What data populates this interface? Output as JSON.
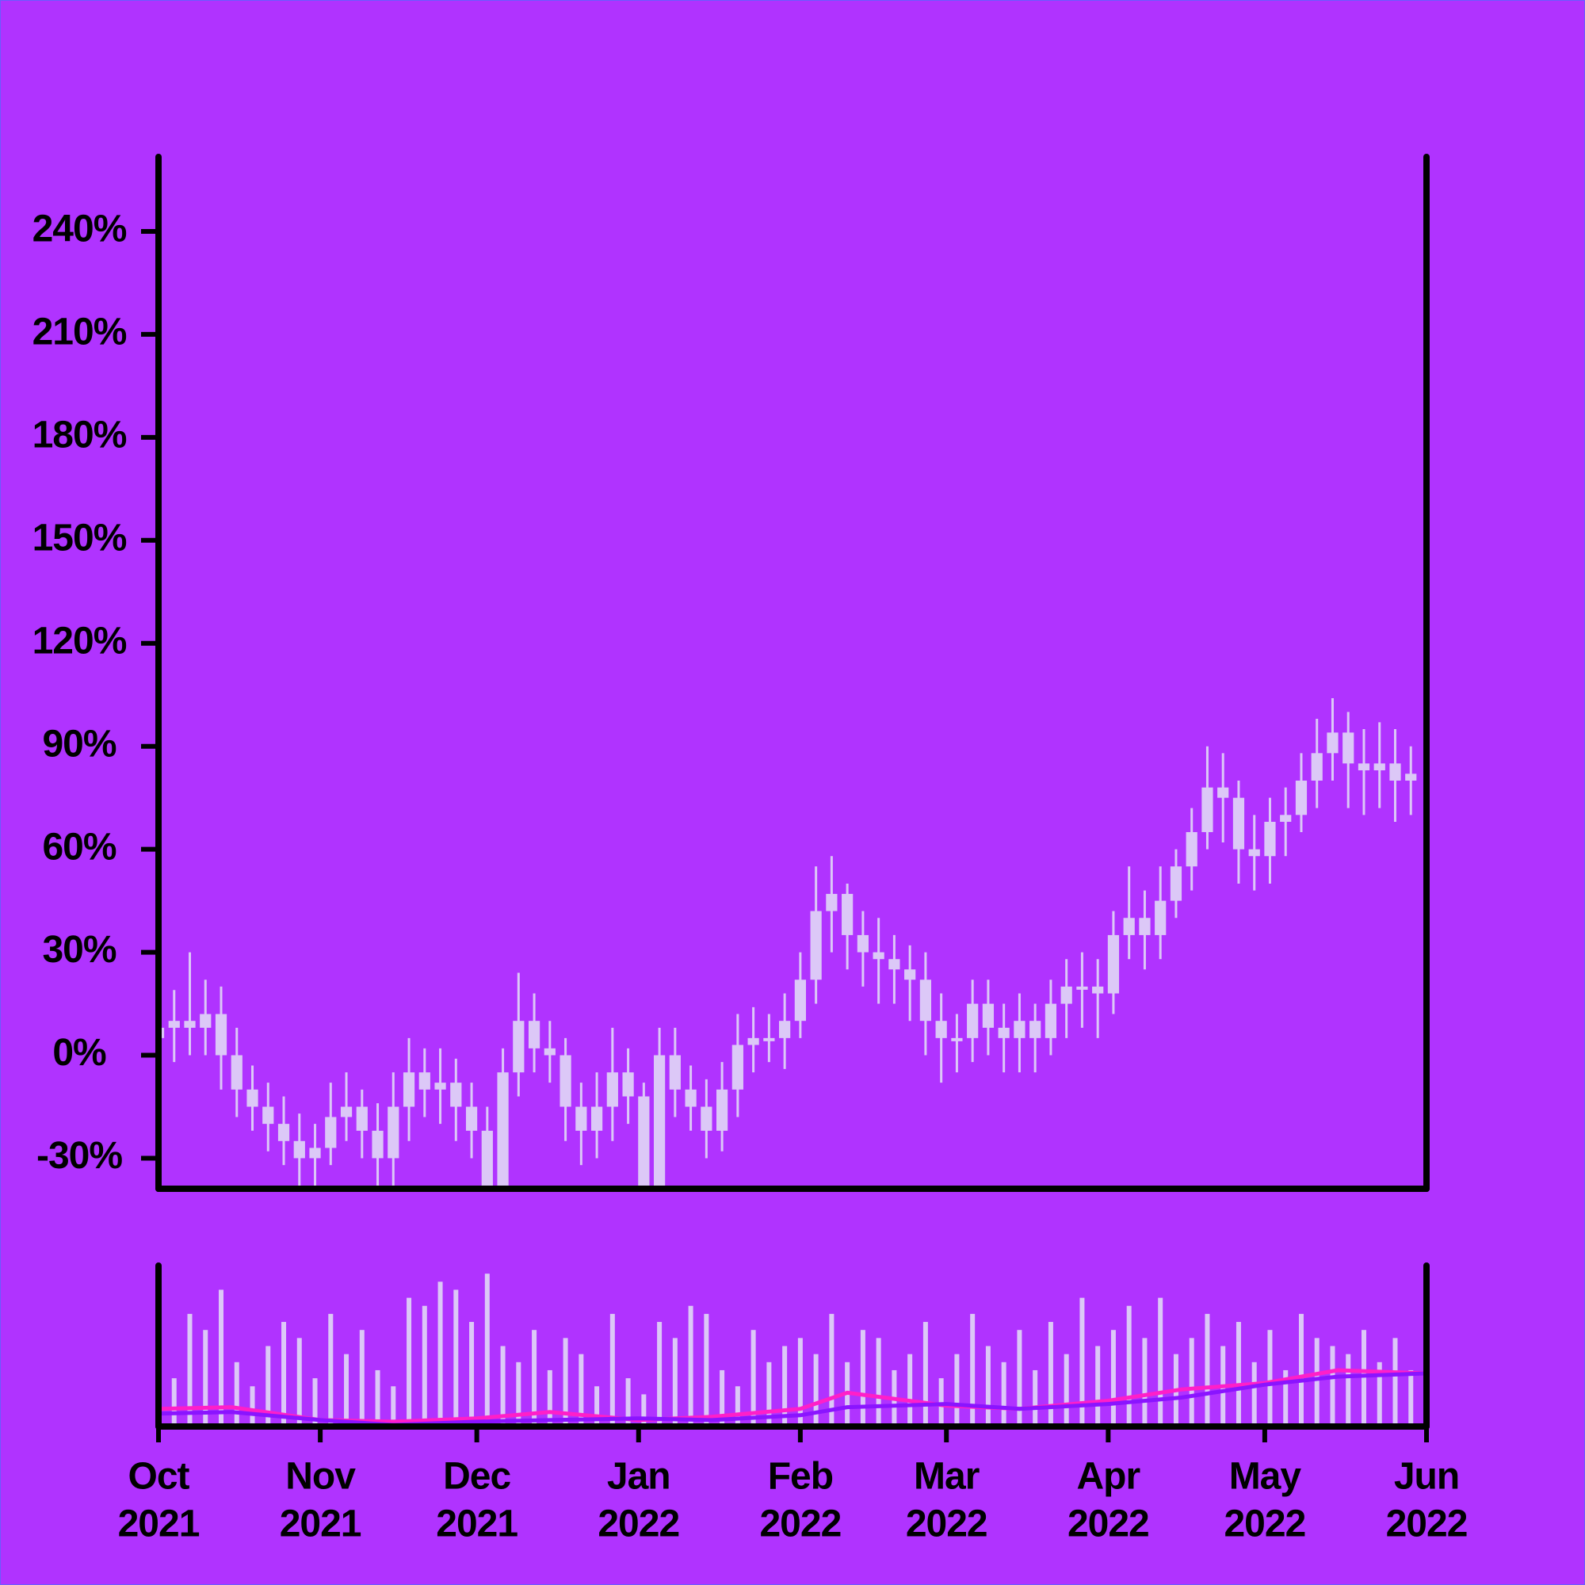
{
  "chart_data": {
    "type": "candlestick",
    "x": [
      "2021-10-01",
      "2021-10-04",
      "2021-10-07",
      "2021-10-10",
      "2021-10-13",
      "2021-10-16",
      "2021-10-19",
      "2021-10-22",
      "2021-10-25",
      "2021-10-28",
      "2021-10-31",
      "2021-11-03",
      "2021-11-06",
      "2021-11-09",
      "2021-11-12",
      "2021-11-15",
      "2021-11-18",
      "2021-11-21",
      "2021-11-24",
      "2021-11-27",
      "2021-11-30",
      "2021-12-03",
      "2021-12-06",
      "2021-12-09",
      "2021-12-12",
      "2021-12-15",
      "2021-12-18",
      "2021-12-21",
      "2021-12-24",
      "2021-12-27",
      "2021-12-30",
      "2022-01-02",
      "2022-01-05",
      "2022-01-08",
      "2022-01-11",
      "2022-01-14",
      "2022-01-17",
      "2022-01-20",
      "2022-01-23",
      "2022-01-26",
      "2022-01-29",
      "2022-02-01",
      "2022-02-04",
      "2022-02-07",
      "2022-02-10",
      "2022-02-13",
      "2022-02-16",
      "2022-02-19",
      "2022-02-22",
      "2022-02-25",
      "2022-02-28",
      "2022-03-03",
      "2022-03-06",
      "2022-03-09",
      "2022-03-12",
      "2022-03-15",
      "2022-03-18",
      "2022-03-21",
      "2022-03-24",
      "2022-03-27",
      "2022-03-30",
      "2022-04-02",
      "2022-04-05",
      "2022-04-08",
      "2022-04-11",
      "2022-04-14",
      "2022-04-17",
      "2022-04-20",
      "2022-04-23",
      "2022-04-26",
      "2022-04-29",
      "2022-05-02",
      "2022-05-05",
      "2022-05-08",
      "2022-05-11",
      "2022-05-14",
      "2022-05-17",
      "2022-05-20",
      "2022-05-23",
      "2022-05-26",
      "2022-05-29"
    ],
    "open": [
      5,
      8,
      10,
      8,
      12,
      0,
      -10,
      -15,
      -20,
      -25,
      -30,
      -27,
      -18,
      -15,
      -22,
      -30,
      -15,
      -5,
      -10,
      -8,
      -15,
      -22,
      -38,
      -5,
      10,
      2,
      0,
      -15,
      -22,
      -15,
      -5,
      -12,
      -42,
      0,
      -10,
      -15,
      -22,
      -10,
      3,
      5,
      5,
      10,
      22,
      42,
      47,
      35,
      30,
      28,
      25,
      22,
      10,
      5,
      5,
      15,
      8,
      5,
      10,
      5,
      15,
      20,
      20,
      18,
      35,
      40,
      35,
      45,
      55,
      65,
      78,
      75,
      60,
      58,
      68,
      70,
      80,
      88,
      94,
      85,
      83,
      85,
      80
    ],
    "high": [
      18,
      19,
      30,
      22,
      20,
      8,
      -3,
      -8,
      -12,
      -17,
      -20,
      -8,
      -5,
      -10,
      -14,
      -5,
      5,
      2,
      2,
      -1,
      -8,
      -15,
      2,
      24,
      18,
      10,
      5,
      -8,
      -5,
      8,
      2,
      -8,
      8,
      8,
      -3,
      -7,
      -2,
      12,
      14,
      12,
      18,
      30,
      55,
      58,
      50,
      42,
      40,
      35,
      32,
      30,
      18,
      12,
      22,
      22,
      15,
      18,
      15,
      22,
      28,
      30,
      28,
      42,
      55,
      48,
      55,
      60,
      72,
      90,
      88,
      80,
      70,
      75,
      78,
      88,
      98,
      104,
      100,
      95,
      97,
      95,
      90
    ],
    "low": [
      -8,
      -2,
      0,
      0,
      -10,
      -18,
      -22,
      -28,
      -32,
      -38,
      -40,
      -32,
      -25,
      -30,
      -40,
      -38,
      -25,
      -18,
      -20,
      -25,
      -30,
      -45,
      -45,
      -12,
      -5,
      -8,
      -25,
      -32,
      -30,
      -25,
      -20,
      -48,
      -45,
      -18,
      -22,
      -30,
      -28,
      -18,
      -5,
      -2,
      -4,
      5,
      15,
      30,
      25,
      20,
      15,
      15,
      10,
      0,
      -8,
      -5,
      -2,
      0,
      -5,
      -5,
      -5,
      0,
      5,
      8,
      5,
      12,
      28,
      25,
      28,
      40,
      48,
      60,
      62,
      50,
      48,
      50,
      58,
      65,
      72,
      80,
      72,
      70,
      72,
      68,
      70
    ],
    "close": [
      8,
      10,
      8,
      12,
      0,
      -10,
      -15,
      -20,
      -25,
      -30,
      -27,
      -18,
      -15,
      -22,
      -30,
      -15,
      -5,
      -10,
      -8,
      -15,
      -22,
      -38,
      -5,
      10,
      2,
      0,
      -15,
      -22,
      -15,
      -5,
      -12,
      -42,
      0,
      -10,
      -15,
      -22,
      -10,
      3,
      5,
      5,
      10,
      22,
      42,
      47,
      35,
      30,
      28,
      25,
      22,
      10,
      5,
      5,
      15,
      8,
      5,
      10,
      5,
      15,
      20,
      20,
      18,
      35,
      40,
      35,
      45,
      55,
      65,
      78,
      75,
      60,
      58,
      68,
      70,
      80,
      88,
      94,
      85,
      83,
      85,
      80,
      82
    ],
    "volume": [
      45,
      30,
      70,
      60,
      85,
      40,
      25,
      50,
      65,
      55,
      30,
      70,
      45,
      60,
      35,
      25,
      80,
      75,
      90,
      85,
      65,
      95,
      50,
      40,
      60,
      35,
      55,
      45,
      25,
      70,
      30,
      20,
      65,
      55,
      75,
      70,
      35,
      25,
      60,
      40,
      50,
      55,
      45,
      70,
      40,
      60,
      55,
      35,
      45,
      65,
      30,
      45,
      70,
      50,
      40,
      60,
      35,
      65,
      45,
      80,
      50,
      60,
      75,
      55,
      80,
      45,
      55,
      70,
      50,
      65,
      40,
      60,
      35,
      70,
      55,
      50,
      45,
      60,
      40,
      55,
      35
    ],
    "color": "#dcc8f7",
    "volume_ylim": [
      0,
      100
    ],
    "volume_ma": [
      {
        "color": "#ff1fc8",
        "x": [
          "2021-10-01",
          "2021-10-15",
          "2021-11-01",
          "2021-11-15",
          "2021-12-01",
          "2021-12-15",
          "2022-01-01",
          "2022-01-15",
          "2022-02-01",
          "2022-02-10",
          "2022-03-01",
          "2022-03-15",
          "2022-04-01",
          "2022-04-15",
          "2022-05-01",
          "2022-05-15",
          "2022-06-01"
        ],
        "values": [
          11,
          12,
          4,
          3,
          5,
          9,
          4,
          6,
          11,
          21,
          13,
          11,
          16,
          23,
          27,
          35,
          33
        ]
      },
      {
        "color": "#8a14ff",
        "x": [
          "2021-10-01",
          "2021-10-15",
          "2021-11-01",
          "2021-11-15",
          "2021-12-01",
          "2021-12-15",
          "2022-01-01",
          "2022-01-15",
          "2022-02-01",
          "2022-02-10",
          "2022-03-01",
          "2022-03-15",
          "2022-04-01",
          "2022-04-15",
          "2022-05-01",
          "2022-05-15",
          "2022-06-01"
        ],
        "values": [
          8,
          9,
          4,
          1,
          3,
          4,
          5,
          4,
          7,
          12,
          14,
          11,
          14,
          18,
          26,
          31,
          33
        ]
      }
    ],
    "ylim": [
      -38.9,
      261.7
    ],
    "yticks": [
      {
        "value": -30,
        "label": "-30%"
      },
      {
        "value": 0,
        "label": "0%"
      },
      {
        "value": 30,
        "label": "30%"
      },
      {
        "value": 60,
        "label": "60%"
      },
      {
        "value": 90,
        "label": "90%"
      },
      {
        "value": 120,
        "label": "120%"
      },
      {
        "value": 150,
        "label": "150%"
      },
      {
        "value": 180,
        "label": "180%"
      },
      {
        "value": 210,
        "label": "210%"
      },
      {
        "value": 240,
        "label": "240%"
      }
    ],
    "xlim": [
      "2021-10-01",
      "2022-06-01"
    ],
    "xticks": [
      {
        "value": "2021-10-01",
        "label": [
          "Oct",
          "2021"
        ]
      },
      {
        "value": "2021-11-01",
        "label": [
          "Nov",
          "2021"
        ]
      },
      {
        "value": "2021-12-01",
        "label": [
          "Dec",
          "2021"
        ]
      },
      {
        "value": "2022-01-01",
        "label": [
          "Jan",
          "2022"
        ]
      },
      {
        "value": "2022-02-01",
        "label": [
          "Feb",
          "2022"
        ]
      },
      {
        "value": "2022-03-01",
        "label": [
          "Mar",
          "2022"
        ]
      },
      {
        "value": "2022-04-01",
        "label": [
          "Apr",
          "2022"
        ]
      },
      {
        "value": "2022-05-01",
        "label": [
          "May",
          "2022"
        ]
      },
      {
        "value": "2022-06-01",
        "label": [
          "Jun",
          "2022"
        ]
      }
    ],
    "background": "#b033ff"
  }
}
